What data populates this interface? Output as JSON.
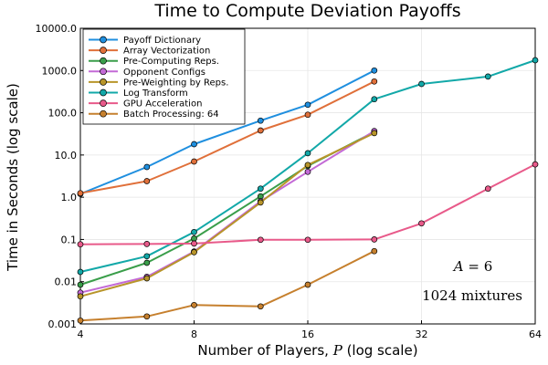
{
  "chart_data": {
    "type": "line",
    "title": "Time to Compute Deviation Payoffs",
    "xlabel": "Number of Players, ",
    "xlabel_var": "P",
    "xlabel_suffix": " (log scale)",
    "ylabel": "Time in Seconds (log scale)",
    "xscale": "log2",
    "yscale": "log10",
    "xlim": [
      4,
      64
    ],
    "ylim": [
      0.001,
      10000
    ],
    "xticks": [
      4,
      8,
      16,
      32,
      64
    ],
    "xtick_labels": [
      "4",
      "8",
      "16",
      "32",
      "64"
    ],
    "yticks": [
      0.001,
      0.01,
      0.1,
      1,
      10,
      100,
      1000,
      10000
    ],
    "ytick_labels": [
      "0.001",
      "0.01",
      "0.1",
      "1.0",
      "10.0",
      "100.0",
      "1000.0",
      "10000.0"
    ],
    "grid": true,
    "legend_position": "top-left",
    "series": [
      {
        "name": "Payoff Dictionary",
        "color": "#1f8fdf",
        "points": [
          [
            4,
            1.2
          ],
          [
            6,
            5.2
          ],
          [
            8,
            18
          ],
          [
            12,
            65
          ],
          [
            16,
            155
          ],
          [
            24,
            1000
          ]
        ]
      },
      {
        "name": "Array Vectorization",
        "color": "#e0703a",
        "points": [
          [
            4,
            1.25
          ],
          [
            6,
            2.4
          ],
          [
            8,
            7
          ],
          [
            12,
            38
          ],
          [
            16,
            90
          ],
          [
            24,
            550
          ]
        ]
      },
      {
        "name": "Pre-Computing Reps.",
        "color": "#3a9e4a",
        "points": [
          [
            4,
            0.0085
          ],
          [
            6,
            0.028
          ],
          [
            8,
            0.105
          ],
          [
            12,
            1.05
          ],
          [
            16,
            5.5
          ],
          [
            24,
            35
          ]
        ]
      },
      {
        "name": "Opponent Configs",
        "color": "#c36ad6",
        "points": [
          [
            4,
            0.0055
          ],
          [
            6,
            0.013
          ],
          [
            8,
            0.052
          ],
          [
            12,
            0.8
          ],
          [
            16,
            4
          ],
          [
            24,
            37
          ]
        ]
      },
      {
        "name": "Pre-Weighting by Reps.",
        "color": "#b8952a",
        "points": [
          [
            4,
            0.0045
          ],
          [
            6,
            0.012
          ],
          [
            8,
            0.05
          ],
          [
            12,
            0.75
          ],
          [
            16,
            5.8
          ],
          [
            24,
            33
          ]
        ]
      },
      {
        "name": "Log Transform",
        "color": "#12a8a8",
        "points": [
          [
            4,
            0.017
          ],
          [
            6,
            0.04
          ],
          [
            8,
            0.15
          ],
          [
            12,
            1.6
          ],
          [
            16,
            11
          ],
          [
            24,
            210
          ],
          [
            32,
            480
          ],
          [
            48,
            720
          ],
          [
            64,
            1750
          ]
        ]
      },
      {
        "name": "GPU Acceleration",
        "color": "#e85a8a",
        "points": [
          [
            4,
            0.077
          ],
          [
            6,
            0.078
          ],
          [
            8,
            0.08
          ],
          [
            12,
            0.098
          ],
          [
            16,
            0.098
          ],
          [
            24,
            0.1
          ],
          [
            32,
            0.24
          ],
          [
            48,
            1.6
          ],
          [
            64,
            6
          ]
        ]
      },
      {
        "name": "Batch Processing: 64",
        "color": "#c6802e",
        "points": [
          [
            4,
            0.0012
          ],
          [
            6,
            0.0015
          ],
          [
            8,
            0.0028
          ],
          [
            12,
            0.0026
          ],
          [
            16,
            0.0085
          ],
          [
            24,
            0.053
          ]
        ]
      }
    ],
    "annotations": {
      "a_var": "A",
      "a_eq": " = 6",
      "mixtures": "1024 mixtures"
    }
  }
}
